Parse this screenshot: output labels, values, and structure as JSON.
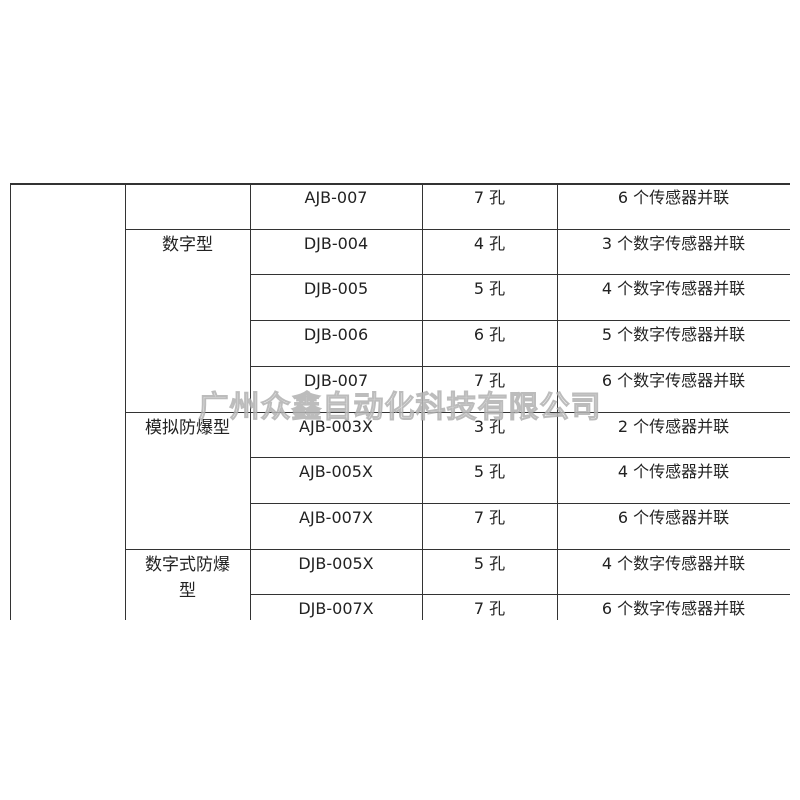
{
  "table": {
    "groups": [
      {
        "rows": [
          {
            "model": "AJB-007",
            "holes": "7 孔",
            "description": "6 个传感器并联"
          }
        ]
      },
      {
        "label": "数字型",
        "rows": [
          {
            "model": "DJB-004",
            "holes": "4 孔",
            "description": "3 个数字传感器并联"
          },
          {
            "model": "DJB-005",
            "holes": "5 孔",
            "description": "4 个数字传感器并联"
          },
          {
            "model": "DJB-006",
            "holes": "6 孔",
            "description": "5 个数字传感器并联"
          },
          {
            "model": "DJB-007",
            "holes": "7 孔",
            "description": "6 个数字传感器并联"
          }
        ]
      },
      {
        "label": "模拟防爆型",
        "rows": [
          {
            "model": "AJB-003X",
            "holes": "3 孔",
            "description": "2 个传感器并联"
          },
          {
            "model": "AJB-005X",
            "holes": "5 孔",
            "description": "4 个传感器并联"
          },
          {
            "model": "AJB-007X",
            "holes": "7 孔",
            "description": "6 个传感器并联"
          }
        ]
      },
      {
        "label": "数字式防爆型",
        "rows": [
          {
            "model": "DJB-005X",
            "holes": "5 孔",
            "description": "4 个数字传感器并联"
          },
          {
            "model": "DJB-007X",
            "holes": "7 孔",
            "description": "6 个数字传感器并联"
          }
        ]
      }
    ]
  },
  "watermark": "广州众鑫自动化科技有限公司"
}
